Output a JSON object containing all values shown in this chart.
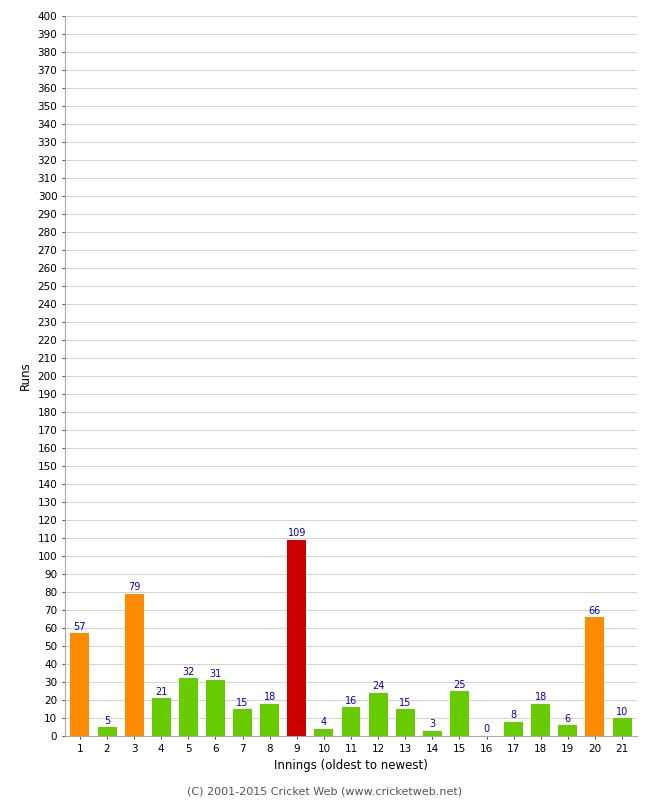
{
  "xlabel": "Innings (oldest to newest)",
  "ylabel": "Runs",
  "ylim": [
    0,
    400
  ],
  "background_color": "#ffffff",
  "grid_color": "#cccccc",
  "innings": [
    1,
    2,
    3,
    4,
    5,
    6,
    7,
    8,
    9,
    10,
    11,
    12,
    13,
    14,
    15,
    16,
    17,
    18,
    19,
    20,
    21
  ],
  "values": [
    57,
    5,
    79,
    21,
    32,
    31,
    15,
    18,
    109,
    4,
    16,
    24,
    15,
    3,
    25,
    0,
    8,
    18,
    6,
    66,
    10
  ],
  "colors": [
    "#ff8c00",
    "#66cc00",
    "#ff8c00",
    "#66cc00",
    "#66cc00",
    "#66cc00",
    "#66cc00",
    "#66cc00",
    "#cc0000",
    "#66cc00",
    "#66cc00",
    "#66cc00",
    "#66cc00",
    "#66cc00",
    "#66cc00",
    "#66cc00",
    "#66cc00",
    "#66cc00",
    "#66cc00",
    "#ff8c00",
    "#66cc00"
  ],
  "label_color": "#0000cc",
  "label_fontsize": 7,
  "tick_fontsize": 7.5,
  "axis_label_fontsize": 8.5,
  "footer": "(C) 2001-2015 Cricket Web (www.cricketweb.net)",
  "footer_fontsize": 8
}
